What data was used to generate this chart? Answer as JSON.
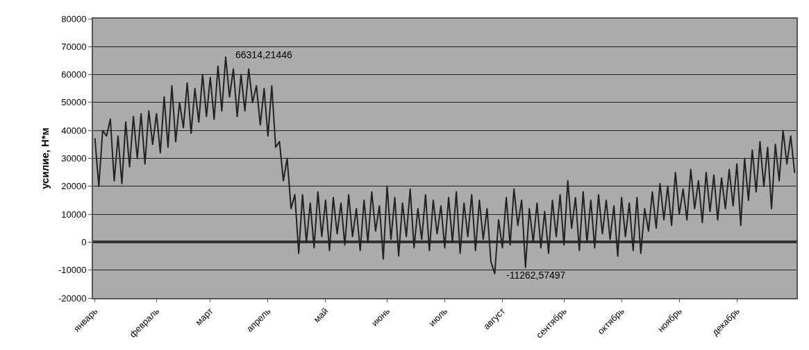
{
  "chart_data": {
    "type": "line",
    "ylabel": "усилие, Н*м",
    "categories": [
      "январь",
      null,
      null,
      null,
      null,
      null,
      null,
      null,
      null,
      null,
      null,
      null,
      null,
      null,
      null,
      null,
      "февраль",
      null,
      null,
      null,
      null,
      null,
      null,
      null,
      null,
      null,
      null,
      null,
      null,
      null,
      "март",
      null,
      null,
      null,
      null,
      null,
      null,
      null,
      null,
      null,
      null,
      null,
      null,
      null,
      null,
      "апрель",
      null,
      null,
      null,
      null,
      null,
      null,
      null,
      null,
      null,
      null,
      null,
      null,
      null,
      null,
      "май",
      null,
      null,
      null,
      null,
      null,
      null,
      null,
      null,
      null,
      null,
      null,
      null,
      null,
      null,
      null,
      "июнь",
      null,
      null,
      null,
      null,
      null,
      null,
      null,
      null,
      null,
      null,
      null,
      null,
      null,
      null,
      "июль",
      null,
      null,
      null,
      null,
      null,
      null,
      null,
      null,
      null,
      null,
      null,
      null,
      null,
      null,
      "август",
      null,
      null,
      null,
      null,
      null,
      null,
      null,
      null,
      null,
      null,
      null,
      null,
      null,
      null,
      null,
      "сентябрь",
      null,
      null,
      null,
      null,
      null,
      null,
      null,
      null,
      null,
      null,
      null,
      null,
      null,
      null,
      "октябрь",
      null,
      null,
      null,
      null,
      null,
      null,
      null,
      null,
      null,
      null,
      null,
      null,
      null,
      null,
      "ноябрь",
      null,
      null,
      null,
      null,
      null,
      null,
      null,
      null,
      null,
      null,
      null,
      null,
      null,
      null,
      "декабрь",
      null,
      null,
      null,
      null,
      null,
      null,
      null,
      null,
      null,
      null,
      null,
      null,
      null,
      null,
      null
    ],
    "series": [
      {
        "color": "#222222",
        "values": [
          37000,
          20000,
          40000,
          38000,
          44000,
          22000,
          38000,
          21000,
          43000,
          27000,
          45000,
          30000,
          46000,
          28000,
          47000,
          35000,
          46000,
          32000,
          52000,
          34000,
          56000,
          36000,
          50000,
          41000,
          57000,
          39000,
          55000,
          43000,
          60000,
          45000,
          59000,
          44000,
          63000,
          47000,
          66314.21446,
          52000,
          62000,
          45000,
          60000,
          47000,
          62000,
          50000,
          56000,
          42000,
          55000,
          38000,
          56000,
          34000,
          36000,
          22000,
          30000,
          12000,
          17000,
          -4000,
          17000,
          0,
          14000,
          -2000,
          18000,
          2000,
          15000,
          -3000,
          16000,
          3000,
          14000,
          -1000,
          17000,
          2000,
          12000,
          -3000,
          15000,
          0,
          18000,
          4000,
          13000,
          -6000,
          20000,
          1000,
          16000,
          -5000,
          14000,
          2000,
          19000,
          -2000,
          12000,
          1000,
          17000,
          -3000,
          15000,
          3000,
          13000,
          -2000,
          16000,
          0,
          18000,
          -4000,
          14000,
          2000,
          17000,
          -3000,
          15000,
          1000,
          12000,
          -7000,
          -11262.57497,
          8000,
          -2000,
          16000,
          -1000,
          19000,
          6000,
          15000,
          -9000,
          12000,
          0,
          14000,
          -2000,
          11000,
          -4000,
          15000,
          2000,
          17000,
          -1000,
          22000,
          5000,
          16000,
          -3000,
          18000,
          0,
          15000,
          -2000,
          17000,
          3000,
          15000,
          1000,
          13000,
          -5000,
          16000,
          2000,
          14000,
          -3000,
          16000,
          -4000,
          12000,
          4000,
          18000,
          5000,
          21000,
          8000,
          20000,
          6000,
          25000,
          10000,
          19000,
          8000,
          26000,
          12000,
          22000,
          7000,
          25000,
          11000,
          24000,
          8000,
          23000,
          12000,
          26000,
          13000,
          28000,
          6000,
          30000,
          15000,
          33000,
          18000,
          36000,
          20000,
          34000,
          12000,
          35000,
          22000,
          40000,
          28000,
          38000,
          25000
        ]
      }
    ],
    "ylim": [
      -20000,
      80000
    ],
    "yticks": [
      -20000,
      -10000,
      0,
      10000,
      20000,
      30000,
      40000,
      50000,
      60000,
      70000,
      80000
    ],
    "annotations": [
      "66314,21446",
      "-11262,57497"
    ],
    "grid": "y",
    "marker": "none",
    "line_style": "solid"
  }
}
